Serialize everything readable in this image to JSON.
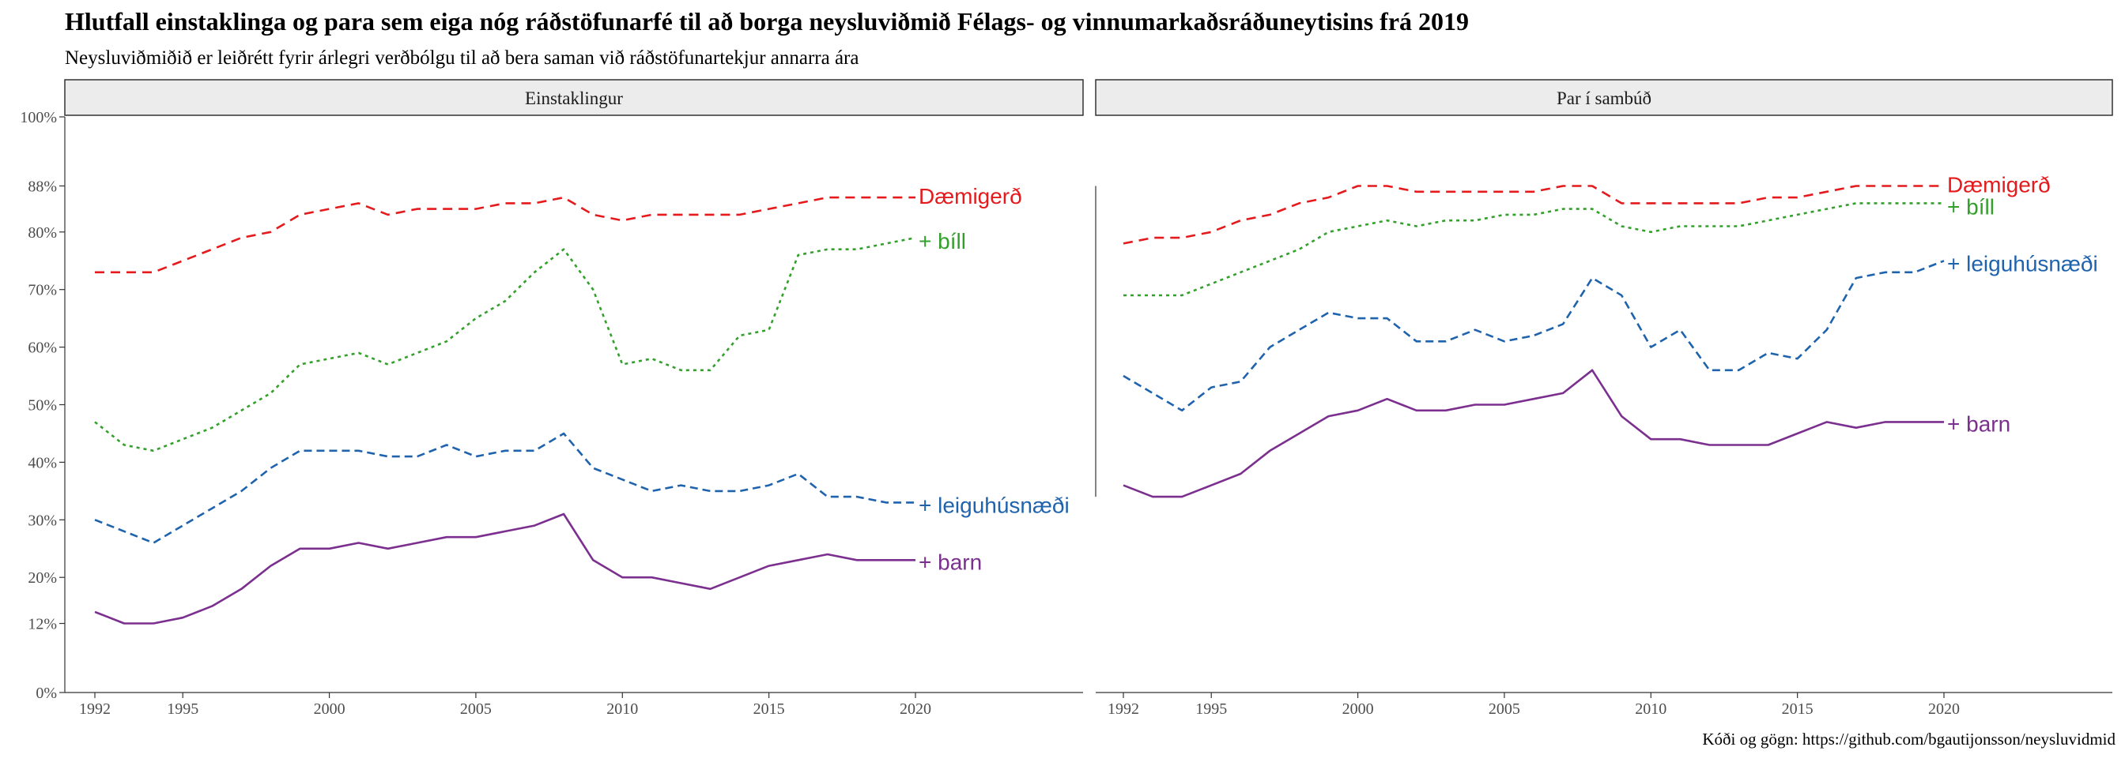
{
  "title": "Hlutfall einstaklinga og para sem eiga nóg ráðstöfunarfé til að borga neysluviðmið Félags- og vinnumarkaðsráðuneytisins frá 2019",
  "subtitle": "Neysluviðmiðið er leiðrétt fyrir árlegri verðbólgu til að bera saman við ráðstöfunartekjur annarra ára",
  "caption": "Kóði og gögn: https://github.com/bgautijonsson/neysluvidmid",
  "chart_data": {
    "type": "line",
    "x_ticks": [
      1992,
      1995,
      2000,
      2005,
      2010,
      2015,
      2020
    ],
    "xlim": [
      1992,
      2020
    ],
    "y_ticks": [
      0,
      12,
      20,
      30,
      40,
      50,
      60,
      70,
      80,
      88,
      100
    ],
    "y_tick_labels": [
      "0%",
      "12%",
      "20%",
      "30%",
      "40%",
      "50%",
      "60%",
      "70%",
      "80%",
      "88%",
      "100%"
    ],
    "ylim": [
      0,
      100
    ],
    "grid": false,
    "legend": "direct labels at line ends",
    "series_styles": {
      "Dæmigerð": {
        "color": "#e41a1c",
        "dash": "12,8"
      },
      "+ bíll": {
        "color": "#33a02c",
        "dash": "4,5"
      },
      "+ leiguhúsnæði": {
        "color": "#1f63ad",
        "dash": "10,6"
      },
      "+ barn": {
        "color": "#7b2f8e",
        "dash": ""
      }
    },
    "panels": [
      {
        "label": "Einstaklingur",
        "x": [
          1992,
          1993,
          1994,
          1995,
          1996,
          1997,
          1998,
          1999,
          2000,
          2001,
          2002,
          2003,
          2004,
          2005,
          2006,
          2007,
          2008,
          2009,
          2010,
          2011,
          2012,
          2013,
          2014,
          2015,
          2016,
          2017,
          2018,
          2019,
          2020
        ],
        "series": [
          {
            "name": "Dæmigerð",
            "values": [
              73,
              73,
              73,
              75,
              77,
              79,
              80,
              83,
              84,
              85,
              83,
              84,
              84,
              84,
              85,
              85,
              86,
              83,
              82,
              83,
              83,
              83,
              83,
              84,
              85,
              86,
              86,
              86,
              86
            ]
          },
          {
            "name": "+ bíll",
            "values": [
              47,
              43,
              42,
              44,
              46,
              49,
              52,
              57,
              58,
              59,
              57,
              59,
              61,
              65,
              68,
              73,
              77,
              70,
              57,
              58,
              56,
              56,
              62,
              63,
              76,
              77,
              77,
              78,
              79
            ]
          },
          {
            "name": "+ leiguhúsnæði",
            "values": [
              30,
              28,
              26,
              29,
              32,
              35,
              39,
              42,
              42,
              42,
              41,
              41,
              43,
              41,
              42,
              42,
              45,
              39,
              37,
              35,
              36,
              35,
              35,
              36,
              38,
              34,
              34,
              33,
              33
            ]
          },
          {
            "name": "+ barn",
            "values": [
              14,
              12,
              12,
              13,
              15,
              18,
              22,
              25,
              25,
              26,
              25,
              26,
              27,
              27,
              28,
              29,
              31,
              23,
              20,
              20,
              19,
              18,
              20,
              22,
              23,
              24,
              23,
              23,
              23
            ]
          }
        ]
      },
      {
        "label": "Par í sambúð",
        "x": [
          1992,
          1993,
          1994,
          1995,
          1996,
          1997,
          1998,
          1999,
          2000,
          2001,
          2002,
          2003,
          2004,
          2005,
          2006,
          2007,
          2008,
          2009,
          2010,
          2011,
          2012,
          2013,
          2014,
          2015,
          2016,
          2017,
          2018,
          2019,
          2020
        ],
        "series": [
          {
            "name": "Dæmigerð",
            "values": [
              78,
              79,
              79,
              80,
              82,
              83,
              85,
              86,
              88,
              88,
              87,
              87,
              87,
              87,
              87,
              88,
              88,
              85,
              85,
              85,
              85,
              85,
              86,
              86,
              87,
              88,
              88,
              88,
              88
            ]
          },
          {
            "name": "+ bíll",
            "values": [
              69,
              69,
              69,
              71,
              73,
              75,
              77,
              80,
              81,
              82,
              81,
              82,
              82,
              83,
              83,
              84,
              84,
              81,
              80,
              81,
              81,
              81,
              82,
              83,
              84,
              85,
              85,
              85,
              85
            ]
          },
          {
            "name": "+ leiguhúsnæði",
            "values": [
              55,
              52,
              49,
              53,
              54,
              60,
              63,
              66,
              65,
              65,
              61,
              61,
              63,
              61,
              62,
              64,
              72,
              69,
              60,
              63,
              56,
              56,
              59,
              58,
              63,
              72,
              73,
              73,
              75
            ]
          },
          {
            "name": "+ barn",
            "values": [
              36,
              34,
              34,
              36,
              38,
              42,
              45,
              48,
              49,
              51,
              49,
              49,
              50,
              50,
              51,
              52,
              56,
              48,
              44,
              44,
              43,
              43,
              43,
              45,
              47,
              46,
              47,
              47,
              47
            ]
          }
        ]
      }
    ]
  }
}
